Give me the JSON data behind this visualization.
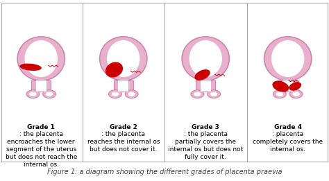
{
  "background_color": "#ffffff",
  "border_color": "#aaaaaa",
  "uterus_fill": "#e8b0cc",
  "uterus_edge": "#cc88aa",
  "inner_fill": "#ffffff",
  "placenta_color": "#cc0000",
  "zigzag_color": "#cc0000",
  "figure_caption": "Figure 1: a diagram showing the different grades of placenta praevia",
  "caption_fontsize": 7,
  "grades": [
    {
      "label": "Grade 1",
      "text": ": the placenta\nencroaches the lower\nsegment of the uterus\nbut does not reach the\ninternal os."
    },
    {
      "label": "Grade 2",
      "text": ": the placenta\nreaches the internal os\nbut does not cover it."
    },
    {
      "label": "Grade 3",
      "text": ": the placenta\npartially covers the\ninternal os but does not\nfully cover it."
    },
    {
      "label": "Grade 4",
      "text": ": placenta\ncompletely covers the\ninternal os."
    }
  ],
  "label_fontsize": 6.5,
  "text_fontsize": 6.5
}
